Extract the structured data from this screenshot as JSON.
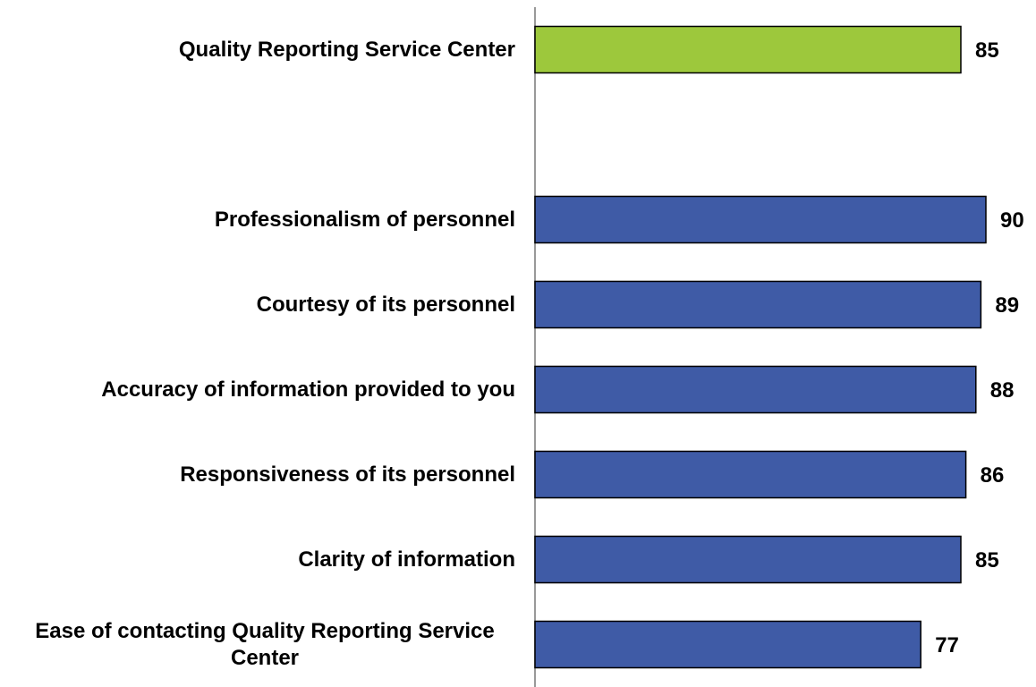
{
  "chart_data": {
    "type": "hbar",
    "categories": [
      "Quality Reporting Service Center",
      null,
      "Professionalism of personnel",
      "Courtesy of its personnel",
      "Accuracy of information provided to you",
      "Responsiveness of its personnel",
      "Clarity of information",
      "Ease of contacting Quality Reporting Service Center"
    ],
    "values": [
      85,
      null,
      90,
      89,
      88,
      86,
      85,
      77
    ],
    "colors": [
      "#9dc83c",
      null,
      "#3f5ba6",
      "#3f5ba6",
      "#3f5ba6",
      "#3f5ba6",
      "#3f5ba6",
      "#3f5ba6"
    ],
    "xlim": [
      0,
      100
    ]
  }
}
